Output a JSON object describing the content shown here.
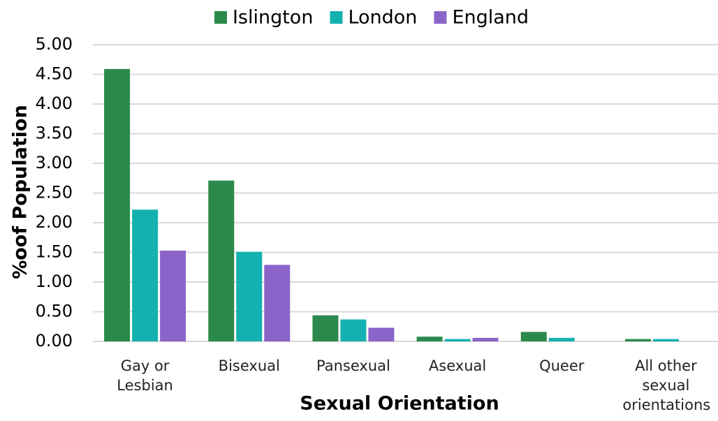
{
  "chart_data": {
    "type": "bar",
    "x_label": "Sexual Orientation",
    "y_label": "%oof Population",
    "categories": [
      "Gay or Lesbian",
      "Bisexual",
      "Pansexual",
      "Asexual",
      "Queer",
      "All other sexual orientations"
    ],
    "series": [
      {
        "name": "Islington",
        "color": "#2b8a4b",
        "values": [
          4.59,
          2.71,
          0.44,
          0.08,
          0.16,
          0.04
        ]
      },
      {
        "name": "London",
        "color": "#14b1b0",
        "values": [
          2.22,
          1.51,
          0.37,
          0.04,
          0.06,
          0.04
        ]
      },
      {
        "name": "England",
        "color": "#8b64c9",
        "values": [
          1.53,
          1.29,
          0.23,
          0.06,
          0,
          0
        ]
      }
    ],
    "ylim": [
      0,
      5
    ],
    "yticks": [
      {
        "value": 0,
        "label": "0.00"
      },
      {
        "value": 0.5,
        "label": "0.50"
      },
      {
        "value": 1,
        "label": "1.00"
      },
      {
        "value": 1.5,
        "label": "1.50"
      },
      {
        "value": 2,
        "label": "2.00"
      },
      {
        "value": 2.5,
        "label": "2.50"
      },
      {
        "value": 3,
        "label": "3.00"
      },
      {
        "value": 3.5,
        "label": "3.50"
      },
      {
        "value": 4,
        "label": "4.00"
      },
      {
        "value": 4.5,
        "label": "4.50"
      },
      {
        "value": 5,
        "label": "5.00"
      }
    ],
    "grid": true,
    "legend": "top"
  }
}
